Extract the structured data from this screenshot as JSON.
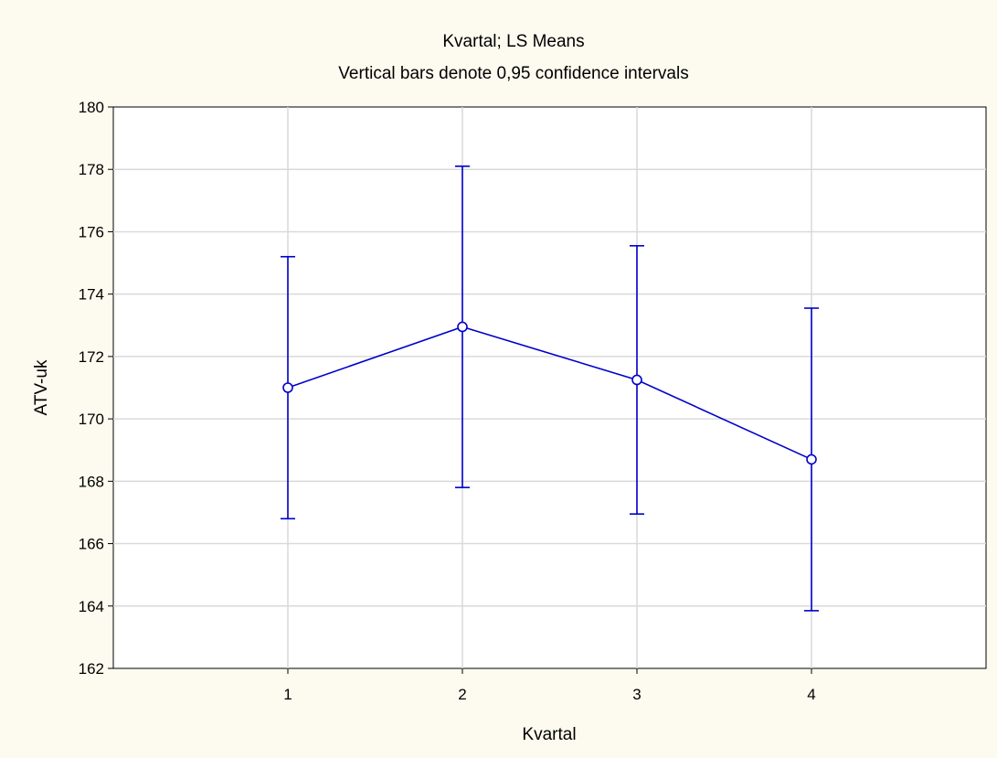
{
  "chart_data": {
    "type": "line",
    "title": "Kvartal; LS Means",
    "subtitle": "Vertical bars denote 0,95 confidence intervals",
    "xlabel": "Kvartal",
    "ylabel": "ATV-uk",
    "categories": [
      "1",
      "2",
      "3",
      "4"
    ],
    "x": [
      1,
      2,
      3,
      4
    ],
    "y": [
      171.0,
      172.95,
      171.25,
      168.7
    ],
    "ci_lower": [
      166.8,
      167.8,
      166.95,
      163.85
    ],
    "ci_upper": [
      175.2,
      178.1,
      175.55,
      173.55
    ],
    "xlim": [
      0,
      5
    ],
    "ylim": [
      162,
      180
    ],
    "yticks": [
      162,
      164,
      166,
      168,
      170,
      172,
      174,
      176,
      178,
      180
    ],
    "grid": true,
    "colors": {
      "series": "#0000cc",
      "grid": "#d9d9d9",
      "background": "#fdfbef",
      "plot_background": "#ffffff"
    }
  }
}
